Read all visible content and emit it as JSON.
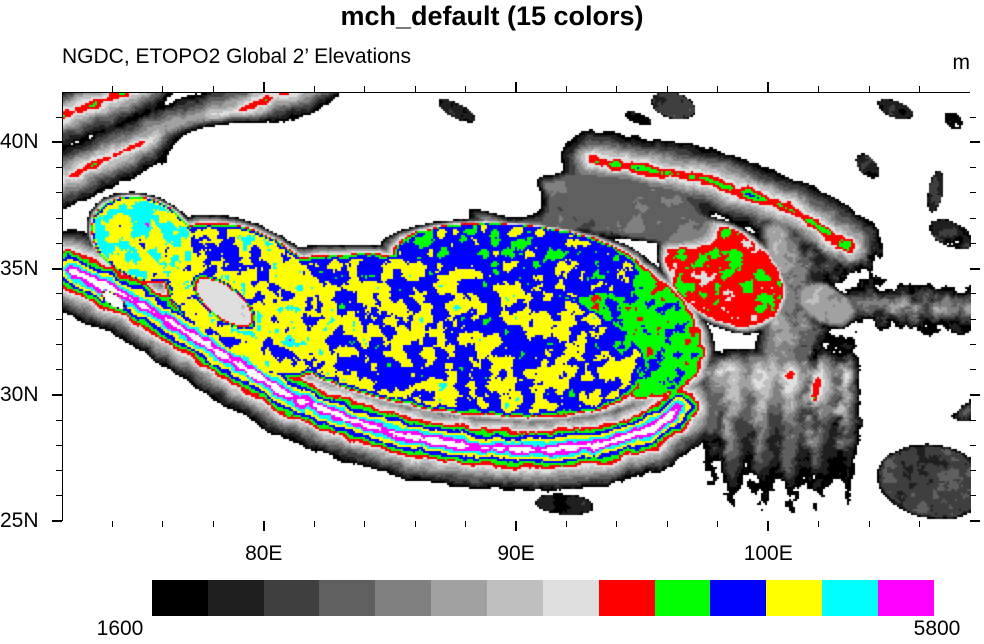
{
  "header": {
    "title": "mch_default (15 colors)",
    "subtitle": "NGDC, ETOPO2 Global 2’ Elevations",
    "units": "m"
  },
  "axes": {
    "x": [
      {
        "label": "80E",
        "deg": 80
      },
      {
        "label": "90E",
        "deg": 90
      },
      {
        "label": "100E",
        "deg": 100
      }
    ],
    "y": [
      {
        "label": "40N",
        "deg": 40
      },
      {
        "label": "35N",
        "deg": 35
      },
      {
        "label": "30N",
        "deg": 30
      },
      {
        "label": "25N",
        "deg": 25
      }
    ],
    "minor_x_step_deg": 2,
    "minor_y_step_deg": 1
  },
  "colorbar": {
    "min_label": "1600",
    "max_label": "5800",
    "level_min": 1600,
    "level_max": 5800,
    "level_step": 300,
    "colors": [
      "#ffffff",
      "#000000",
      "#1f1f1f",
      "#3f3f3f",
      "#5f5f5f",
      "#808080",
      "#a1a1a1",
      "#bfbfbf",
      "#dfdfdf",
      "#ff0000",
      "#00ff00",
      "#0000ff",
      "#ffff00",
      "#00ffff",
      "#ff00ff"
    ]
  },
  "chart_data": {
    "type": "heatmap",
    "subtype": "geo-elevation-raster",
    "title": "mch_default (15 colors)",
    "subtitle": "NGDC, ETOPO2 Global 2’ Elevations",
    "units": "m",
    "extent": {
      "lon_min": 72,
      "lon_max": 108,
      "lat_min": 25,
      "lat_max": 42
    },
    "x_tick_labels": [
      "80E",
      "90E",
      "100E"
    ],
    "y_tick_labels": [
      "40N",
      "35N",
      "30N",
      "25N"
    ],
    "levels": [
      1600,
      1900,
      2200,
      2500,
      2800,
      3100,
      3400,
      3700,
      4000,
      4300,
      4600,
      4900,
      5200,
      5500,
      5800
    ],
    "under_color": "#ffffff",
    "over_color": "#ffffff",
    "legend_position": "bottom",
    "grid": false
  }
}
